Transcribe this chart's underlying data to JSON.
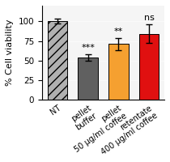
{
  "categories": [
    "NT",
    "pellet\nbuffer",
    "pellet\n50 μg/ml coffee",
    "retentate\n400 μg/ml coffee"
  ],
  "values": [
    100,
    54,
    71,
    84
  ],
  "errors": [
    3,
    4,
    8,
    12
  ],
  "bar_colors": [
    "#b0b0b0",
    "#606060",
    "#f5a030",
    "#e01010"
  ],
  "bar_hatches": [
    "///",
    "",
    "",
    ""
  ],
  "significance": [
    "",
    "***",
    "**",
    "ns"
  ],
  "ylabel": "% Cell viability",
  "ylim": [
    0,
    120
  ],
  "yticks": [
    0,
    25,
    50,
    75,
    100
  ],
  "bg_color": "#ffffff",
  "plot_bg": "#f5f5f5",
  "title_fontsize": 9,
  "label_fontsize": 8,
  "tick_fontsize": 7.5
}
